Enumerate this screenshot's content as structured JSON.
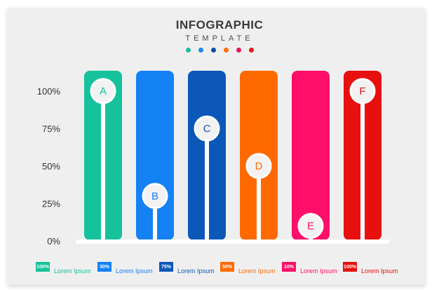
{
  "header": {
    "title": "INFOGRAPHIC",
    "subtitle": "TEMPLATE",
    "dot_colors": [
      "#1bbc9b",
      "#1e88e5",
      "#0d4fa8",
      "#ff6d00",
      "#e8155a",
      "#e61a1a"
    ]
  },
  "chart_data": {
    "type": "bar",
    "categories": [
      "A",
      "B",
      "C",
      "D",
      "E",
      "F"
    ],
    "values": [
      100,
      30,
      75,
      50,
      10,
      100
    ],
    "ylim": [
      0,
      100
    ],
    "yticks": [
      "0%",
      "25%",
      "50%",
      "75%",
      "100%"
    ],
    "colors": [
      "#16c29b",
      "#1481f5",
      "#0b58b8",
      "#ff6a00",
      "#ff0f6a",
      "#e80f0f"
    ],
    "legend": [
      {
        "value": "100%",
        "label": "Lorem Ipsum"
      },
      {
        "value": "30%",
        "label": "Lorem Ipsum"
      },
      {
        "value": "75%",
        "label": "Lorem Ipsum"
      },
      {
        "value": "50%",
        "label": "Lorem Ipsum"
      },
      {
        "value": "10%",
        "label": "Lorem Ipsum"
      },
      {
        "value": "100%",
        "label": "Lorem Ipsum"
      }
    ]
  }
}
